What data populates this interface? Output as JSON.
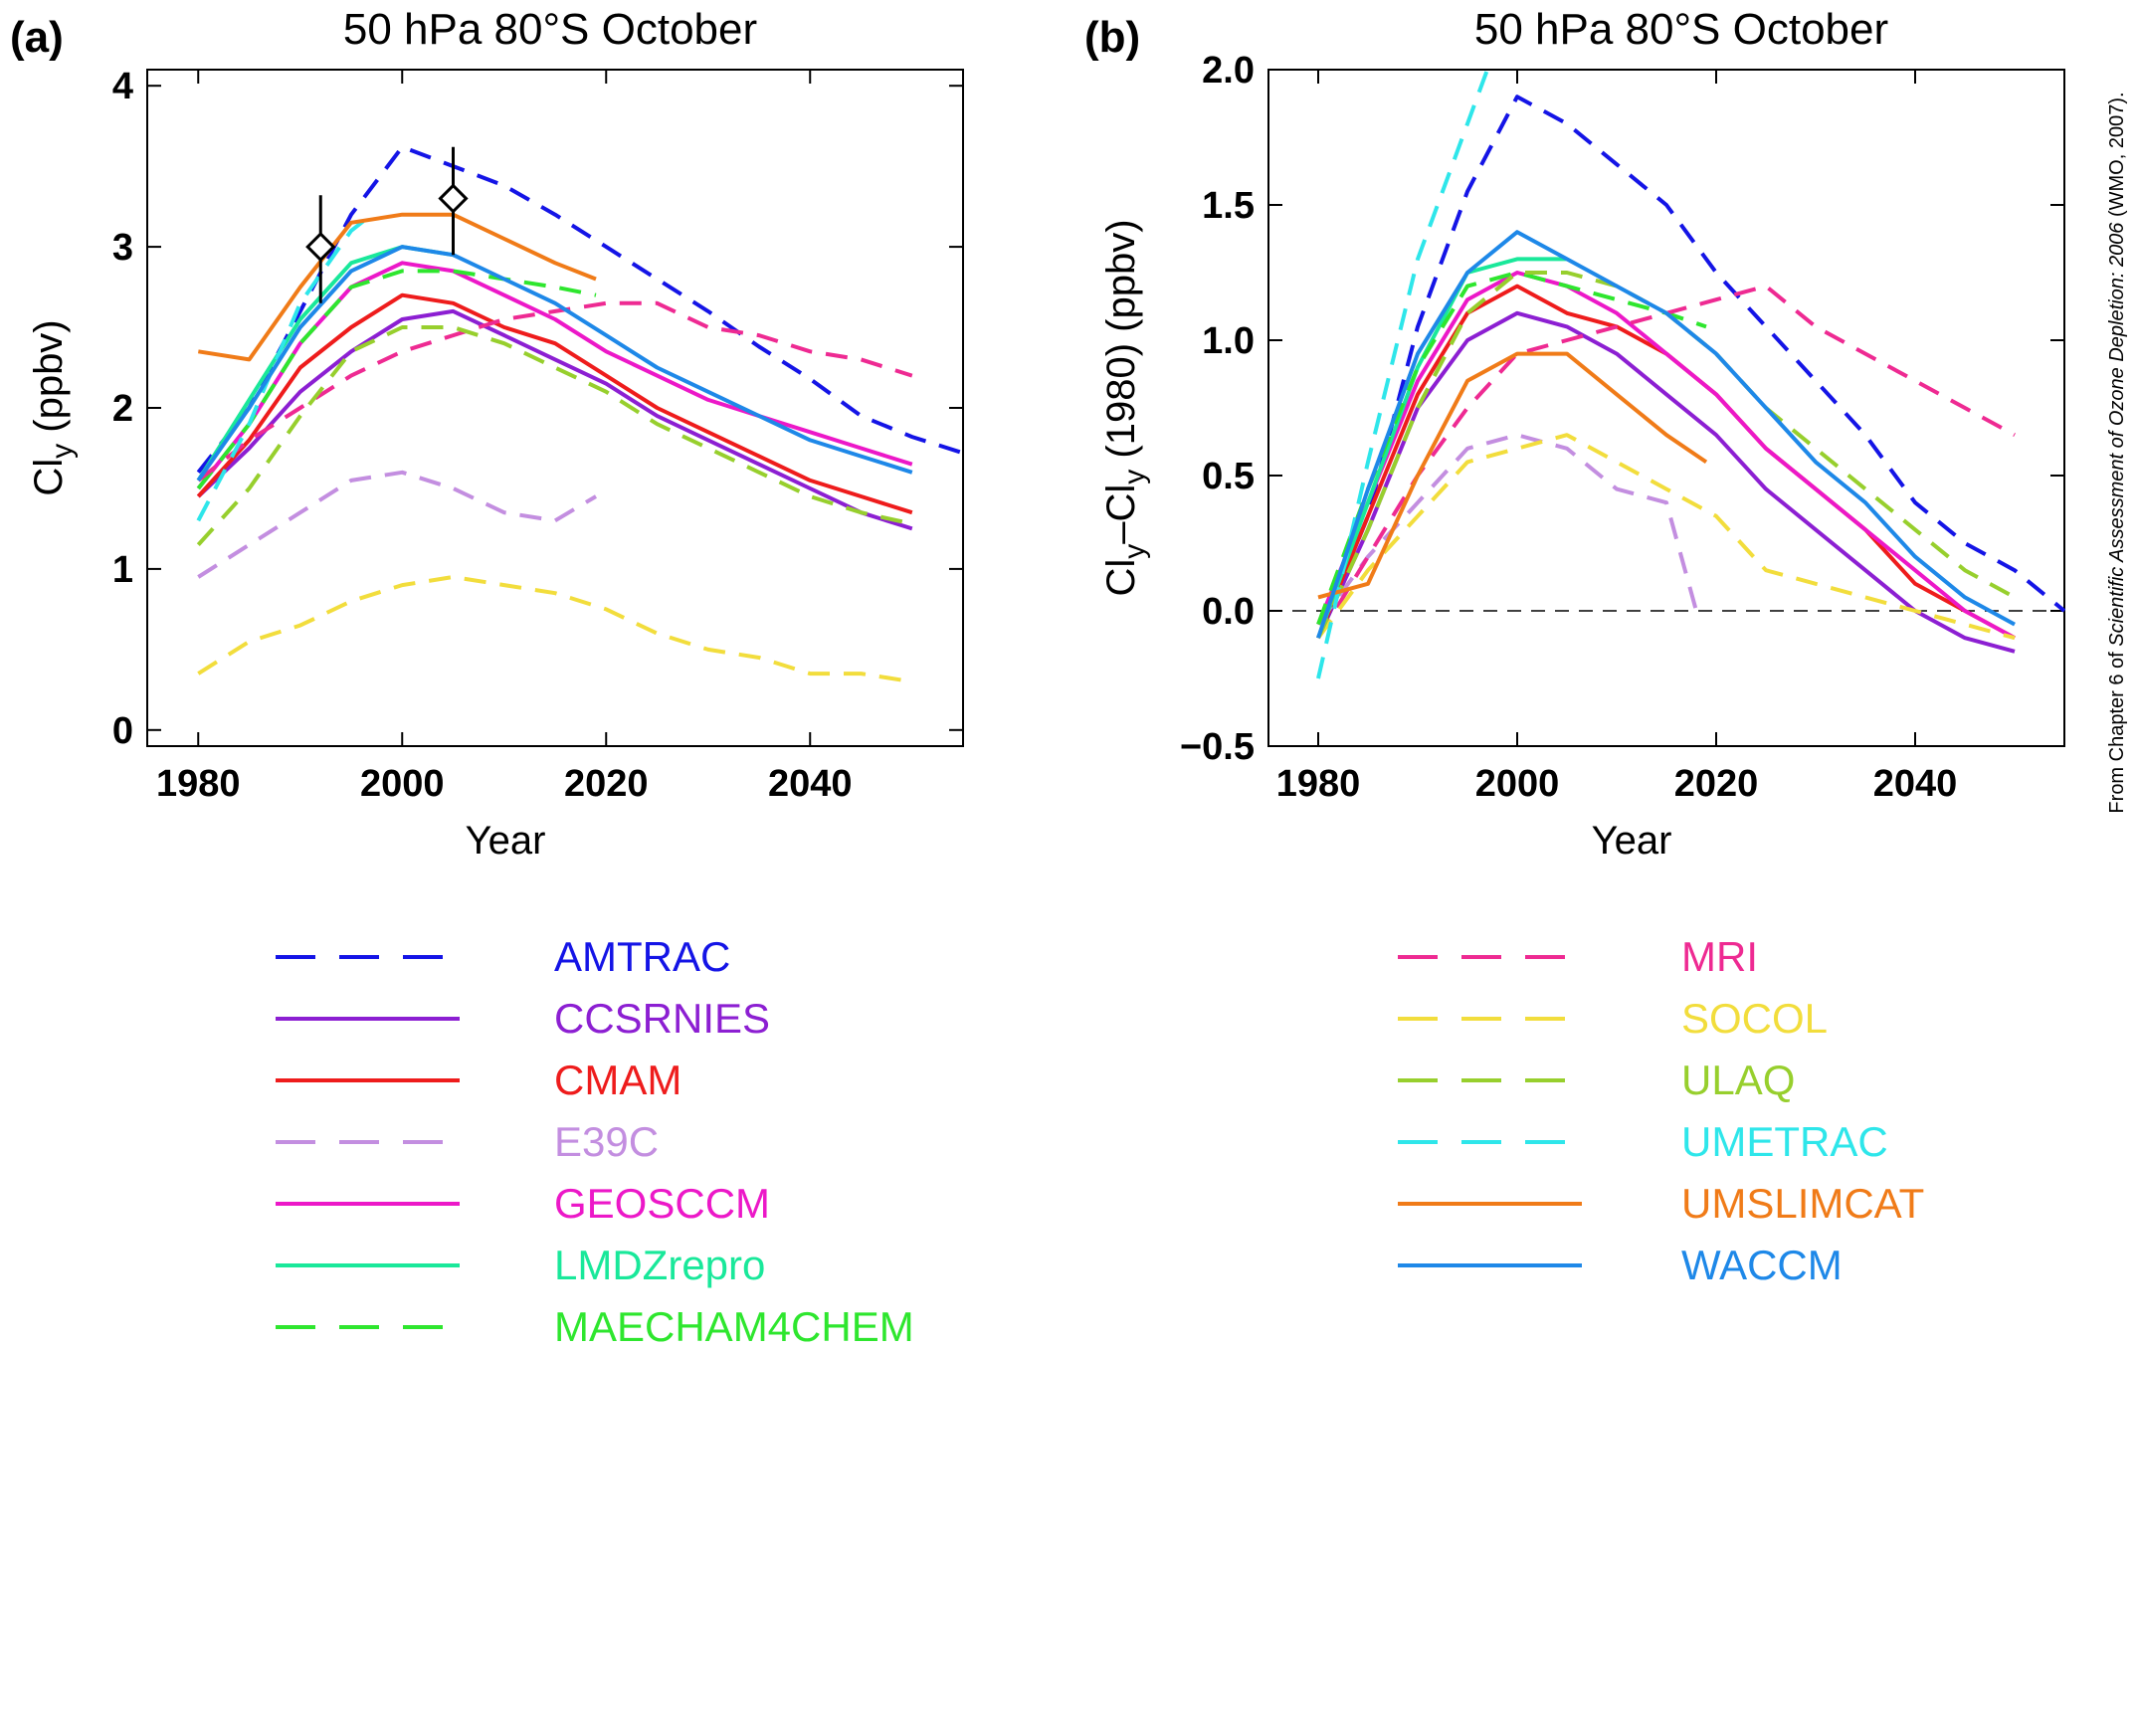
{
  "attribution": {
    "prefix": "From Chapter 6 of ",
    "italic": "Scientific Assessment of Ozone Depletion: 2006",
    "suffix": " (WMO, 2007)."
  },
  "colors": {
    "AMTRAC": "#1414e6",
    "CCSRNIES": "#8c1fd2",
    "CMAM": "#ee1c1c",
    "E39C": "#c38ee0",
    "GEOSCCM": "#ec18c8",
    "LMDZrepro": "#19e89a",
    "MAECHAM4CHEM": "#2ee62e",
    "MRI": "#ee2a92",
    "SOCOL": "#f2dd3c",
    "ULAQ": "#97cf2d",
    "UMETRAC": "#2ee6ea",
    "UMSLIMCAT": "#f07b18",
    "WACCM": "#1e88e8"
  },
  "legend": {
    "left": [
      {
        "label": "AMTRAC",
        "style": "dashed"
      },
      {
        "label": "CCSRNIES",
        "style": "solid"
      },
      {
        "label": "CMAM",
        "style": "solid"
      },
      {
        "label": "E39C",
        "style": "dashed"
      },
      {
        "label": "GEOSCCM",
        "style": "solid"
      },
      {
        "label": "LMDZrepro",
        "style": "solid"
      },
      {
        "label": "MAECHAM4CHEM",
        "style": "dashed"
      }
    ],
    "right": [
      {
        "label": "MRI",
        "style": "dashed"
      },
      {
        "label": "SOCOL",
        "style": "dashed"
      },
      {
        "label": "ULAQ",
        "style": "dashed"
      },
      {
        "label": "UMETRAC",
        "style": "dashed"
      },
      {
        "label": "UMSLIMCAT",
        "style": "solid"
      },
      {
        "label": "WACCM",
        "style": "solid"
      }
    ]
  },
  "chart_data": [
    {
      "panel_label": "(a)",
      "type": "line",
      "title": "50 hPa 80°S October",
      "xlabel": "Year",
      "ylabel_main": "Cl",
      "ylabel_sub": "y",
      "ylabel_rest": " (ppbv)",
      "xlim": [
        1975,
        2055
      ],
      "ylim": [
        -0.1,
        4.1
      ],
      "xticks": [
        1980,
        2000,
        2020,
        2040
      ],
      "yticks": [
        0,
        1,
        2,
        3,
        4
      ],
      "ytick_labels": [
        "0",
        "1",
        "2",
        "3",
        "4"
      ],
      "observations": [
        {
          "x": 1992,
          "y": 3.0,
          "err_low": 2.65,
          "err_high": 3.32
        },
        {
          "x": 2005,
          "y": 3.3,
          "err_low": 2.95,
          "err_high": 3.62
        }
      ],
      "series": [
        {
          "name": "AMTRAC",
          "x": [
            1980,
            1985,
            1990,
            1995,
            2000,
            2005,
            2010,
            2015,
            2020,
            2025,
            2030,
            2035,
            2040,
            2045,
            2050,
            2055
          ],
          "values": [
            1.6,
            2.0,
            2.6,
            3.2,
            3.62,
            3.5,
            3.38,
            3.2,
            3.0,
            2.8,
            2.6,
            2.38,
            2.18,
            1.95,
            1.82,
            1.72
          ]
        },
        {
          "name": "CCSRNIES",
          "x": [
            1980,
            1985,
            1990,
            1995,
            2000,
            2005,
            2010,
            2015,
            2020,
            2025,
            2030,
            2035,
            2040,
            2045,
            2050
          ],
          "values": [
            1.45,
            1.75,
            2.1,
            2.35,
            2.55,
            2.6,
            2.45,
            2.3,
            2.15,
            1.95,
            1.8,
            1.65,
            1.5,
            1.35,
            1.25
          ]
        },
        {
          "name": "CMAM",
          "x": [
            1980,
            1985,
            1990,
            1995,
            2000,
            2005,
            2010,
            2015,
            2020,
            2025,
            2030,
            2035,
            2040,
            2045,
            2050
          ],
          "values": [
            1.45,
            1.8,
            2.25,
            2.5,
            2.7,
            2.65,
            2.5,
            2.4,
            2.2,
            2.0,
            1.85,
            1.7,
            1.55,
            1.45,
            1.35
          ]
        },
        {
          "name": "E39C",
          "x": [
            1980,
            1985,
            1990,
            1995,
            2000,
            2005,
            2010,
            2015,
            2019
          ],
          "values": [
            0.95,
            1.15,
            1.35,
            1.55,
            1.6,
            1.5,
            1.35,
            1.3,
            1.45
          ]
        },
        {
          "name": "GEOSCCM",
          "x": [
            1980,
            1985,
            1990,
            1995,
            2000,
            2005,
            2010,
            2015,
            2020,
            2025,
            2030,
            2035,
            2040,
            2045,
            2050
          ],
          "values": [
            1.5,
            1.9,
            2.4,
            2.75,
            2.9,
            2.85,
            2.7,
            2.55,
            2.35,
            2.2,
            2.05,
            1.95,
            1.85,
            1.75,
            1.65
          ]
        },
        {
          "name": "LMDZrepro",
          "x": [
            1980,
            1985,
            1990,
            1995,
            2000,
            2005
          ],
          "values": [
            1.55,
            2.05,
            2.55,
            2.9,
            3.0,
            2.95
          ]
        },
        {
          "name": "MAECHAM4CHEM",
          "x": [
            1980,
            1985,
            1990,
            1995,
            2000,
            2005,
            2010,
            2015,
            2019
          ],
          "values": [
            1.5,
            1.9,
            2.4,
            2.75,
            2.85,
            2.85,
            2.8,
            2.75,
            2.7
          ]
        },
        {
          "name": "MRI",
          "x": [
            1980,
            1985,
            1990,
            1995,
            2000,
            2005,
            2010,
            2015,
            2020,
            2025,
            2030,
            2035,
            2040,
            2045,
            2050
          ],
          "values": [
            1.55,
            1.8,
            2.0,
            2.2,
            2.35,
            2.45,
            2.55,
            2.6,
            2.65,
            2.65,
            2.5,
            2.45,
            2.35,
            2.3,
            2.2
          ]
        },
        {
          "name": "SOCOL",
          "x": [
            1980,
            1985,
            1990,
            1995,
            2000,
            2005,
            2010,
            2015,
            2020,
            2025,
            2030,
            2035,
            2040,
            2045,
            2050
          ],
          "values": [
            0.35,
            0.55,
            0.65,
            0.8,
            0.9,
            0.95,
            0.9,
            0.85,
            0.75,
            0.6,
            0.5,
            0.45,
            0.35,
            0.35,
            0.3
          ]
        },
        {
          "name": "ULAQ",
          "x": [
            1980,
            1985,
            1990,
            1995,
            2000,
            2005,
            2010,
            2015,
            2020,
            2025,
            2030,
            2035,
            2040,
            2045,
            2050
          ],
          "values": [
            1.15,
            1.5,
            1.95,
            2.35,
            2.5,
            2.5,
            2.4,
            2.25,
            2.1,
            1.9,
            1.75,
            1.6,
            1.45,
            1.35,
            1.28
          ]
        },
        {
          "name": "UMETRAC",
          "x": [
            1980,
            1985,
            1990,
            1995,
            1997
          ],
          "values": [
            1.3,
            1.9,
            2.65,
            3.1,
            3.2
          ]
        },
        {
          "name": "UMSLIMCAT",
          "x": [
            1980,
            1985,
            1990,
            1995,
            2000,
            2005,
            2010,
            2015,
            2019
          ],
          "values": [
            2.35,
            2.3,
            2.75,
            3.15,
            3.2,
            3.2,
            3.05,
            2.9,
            2.8
          ]
        },
        {
          "name": "WACCM",
          "x": [
            1980,
            1985,
            1990,
            1995,
            2000,
            2005,
            2010,
            2015,
            2020,
            2025,
            2030,
            2035,
            2040,
            2045,
            2050
          ],
          "values": [
            1.55,
            2.0,
            2.5,
            2.85,
            3.0,
            2.95,
            2.8,
            2.65,
            2.45,
            2.25,
            2.1,
            1.95,
            1.8,
            1.7,
            1.6
          ]
        }
      ]
    },
    {
      "panel_label": "(b)",
      "type": "line",
      "title": "50 hPa 80°S October",
      "xlabel": "Year",
      "ylabel_main": "Cl",
      "ylabel_sub": "y",
      "ylabel_rest": "–Cl",
      "ylabel_sub2": "y",
      "ylabel_rest2": " (1980) (ppbv)",
      "xlim": [
        1975,
        2055
      ],
      "ylim": [
        -0.5,
        2.0
      ],
      "xticks": [
        1980,
        2000,
        2020,
        2040
      ],
      "yticks": [
        -0.5,
        0.0,
        0.5,
        1.0,
        1.5,
        2.0
      ],
      "ytick_labels": [
        "−0.5",
        "0.0",
        "0.5",
        "1.0",
        "1.5",
        "2.0"
      ],
      "reference_line": 0.0,
      "series": [
        {
          "name": "AMTRAC",
          "x": [
            1980,
            1985,
            1990,
            1995,
            2000,
            2005,
            2010,
            2015,
            2020,
            2025,
            2030,
            2035,
            2040,
            2045,
            2050,
            2055
          ],
          "values": [
            -0.1,
            0.35,
            1.05,
            1.55,
            1.9,
            1.8,
            1.65,
            1.5,
            1.25,
            1.05,
            0.85,
            0.65,
            0.4,
            0.25,
            0.15,
            0.0
          ]
        },
        {
          "name": "CCSRNIES",
          "x": [
            1980,
            1985,
            1990,
            1995,
            2000,
            2005,
            2010,
            2015,
            2020,
            2025,
            2030,
            2035,
            2040,
            2045,
            2050
          ],
          "values": [
            -0.1,
            0.3,
            0.75,
            1.0,
            1.1,
            1.05,
            0.95,
            0.8,
            0.65,
            0.45,
            0.3,
            0.15,
            0.0,
            -0.1,
            -0.15
          ]
        },
        {
          "name": "CMAM",
          "x": [
            1980,
            1985,
            1990,
            1995,
            2000,
            2005,
            2010,
            2015,
            2020,
            2025,
            2030,
            2035,
            2040,
            2045,
            2050
          ],
          "values": [
            -0.1,
            0.35,
            0.8,
            1.1,
            1.2,
            1.1,
            1.05,
            0.95,
            0.8,
            0.6,
            0.45,
            0.3,
            0.1,
            0.0,
            -0.1
          ]
        },
        {
          "name": "E39C",
          "x": [
            1980,
            1985,
            1990,
            1995,
            2000,
            2005,
            2010,
            2015,
            2018
          ],
          "values": [
            -0.05,
            0.2,
            0.4,
            0.6,
            0.65,
            0.6,
            0.45,
            0.4,
            0.0
          ]
        },
        {
          "name": "GEOSCCM",
          "x": [
            1980,
            1985,
            1990,
            1995,
            2000,
            2005,
            2010,
            2015,
            2020,
            2025,
            2030,
            2035,
            2040,
            2045,
            2050
          ],
          "values": [
            -0.05,
            0.4,
            0.85,
            1.15,
            1.25,
            1.2,
            1.1,
            0.95,
            0.8,
            0.6,
            0.45,
            0.3,
            0.15,
            0.0,
            -0.1
          ]
        },
        {
          "name": "LMDZrepro",
          "x": [
            1980,
            1985,
            1990,
            1995,
            2000,
            2005
          ],
          "values": [
            -0.1,
            0.4,
            0.9,
            1.25,
            1.3,
            1.3
          ]
        },
        {
          "name": "MAECHAM4CHEM",
          "x": [
            1980,
            1985,
            1990,
            1995,
            2000,
            2005,
            2010,
            2015,
            2019
          ],
          "values": [
            -0.05,
            0.45,
            0.9,
            1.2,
            1.25,
            1.2,
            1.15,
            1.1,
            1.05
          ]
        },
        {
          "name": "MRI",
          "x": [
            1980,
            1985,
            1990,
            1995,
            2000,
            2005,
            2010,
            2015,
            2020,
            2025,
            2030,
            2035,
            2040,
            2045,
            2050
          ],
          "values": [
            -0.1,
            0.2,
            0.5,
            0.75,
            0.95,
            1.0,
            1.05,
            1.1,
            1.15,
            1.2,
            1.05,
            0.95,
            0.85,
            0.75,
            0.65
          ]
        },
        {
          "name": "SOCOL",
          "x": [
            1980,
            1985,
            1990,
            1995,
            2000,
            2005,
            2010,
            2015,
            2020,
            2025,
            2030,
            2035,
            2040,
            2045,
            2050
          ],
          "values": [
            -0.1,
            0.15,
            0.35,
            0.55,
            0.6,
            0.65,
            0.55,
            0.45,
            0.35,
            0.15,
            0.1,
            0.05,
            0.0,
            -0.05,
            -0.1
          ]
        },
        {
          "name": "ULAQ",
          "x": [
            1980,
            1985,
            1990,
            1995,
            2000,
            2005,
            2010,
            2015,
            2020,
            2025,
            2030,
            2035,
            2040,
            2045,
            2050
          ],
          "values": [
            -0.1,
            0.3,
            0.75,
            1.1,
            1.25,
            1.25,
            1.2,
            1.1,
            0.95,
            0.75,
            0.6,
            0.45,
            0.3,
            0.15,
            0.05
          ]
        },
        {
          "name": "UMETRAC",
          "x": [
            1980,
            1985,
            1990,
            1995,
            1997
          ],
          "values": [
            -0.25,
            0.55,
            1.3,
            1.8,
            2.0
          ]
        },
        {
          "name": "UMSLIMCAT",
          "x": [
            1980,
            1985,
            1990,
            1995,
            2000,
            2005,
            2010,
            2015,
            2019
          ],
          "values": [
            0.05,
            0.1,
            0.5,
            0.85,
            0.95,
            0.95,
            0.8,
            0.65,
            0.55
          ]
        },
        {
          "name": "WACCM",
          "x": [
            1980,
            1985,
            1990,
            1995,
            2000,
            2005,
            2010,
            2015,
            2020,
            2025,
            2030,
            2035,
            2040,
            2045,
            2050
          ],
          "values": [
            -0.1,
            0.45,
            0.95,
            1.25,
            1.4,
            1.3,
            1.2,
            1.1,
            0.95,
            0.75,
            0.55,
            0.4,
            0.2,
            0.05,
            -0.05
          ]
        }
      ]
    }
  ]
}
